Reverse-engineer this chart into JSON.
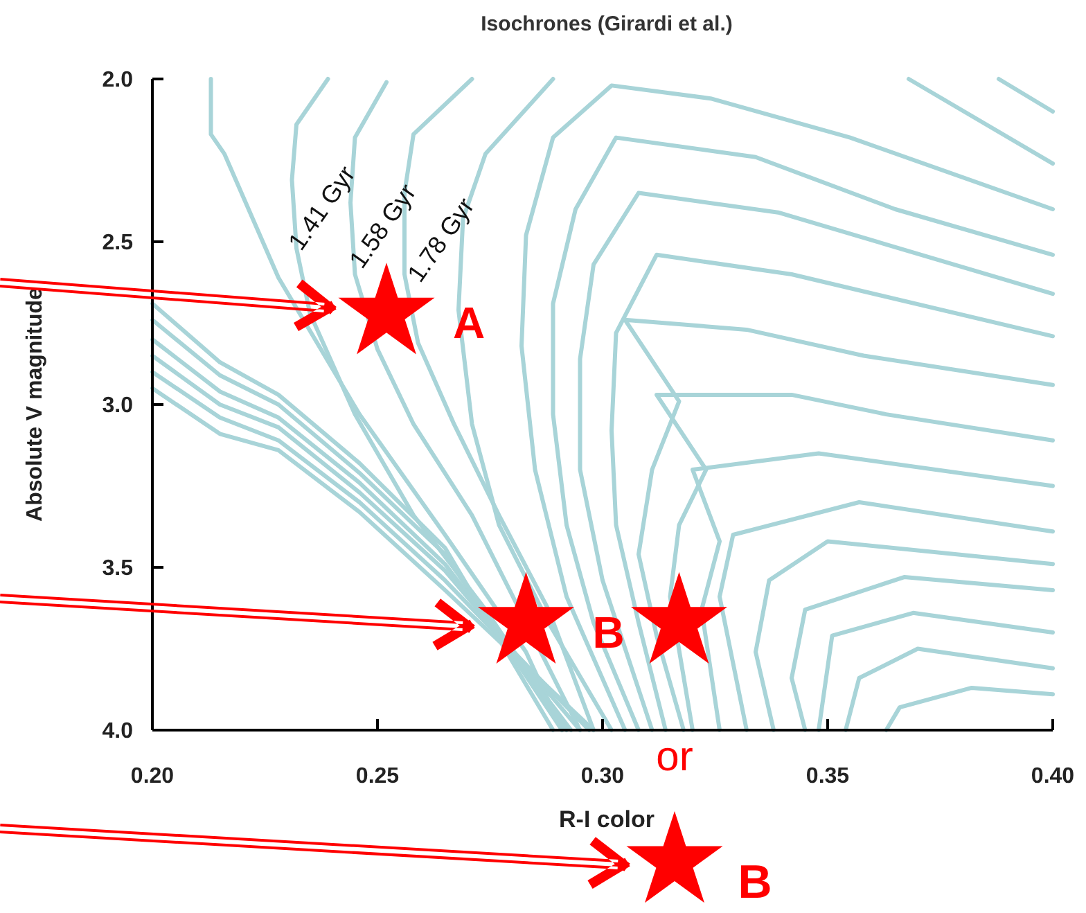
{
  "chart_data": {
    "type": "line",
    "title": "Isochrones (Girardi et al.)",
    "xlabel": "R-I color",
    "ylabel": "Absolute V magnitude",
    "xlim": [
      0.2,
      0.4
    ],
    "ylim": [
      4,
      2
    ],
    "xticks": [
      {
        "value": 0.2,
        "label": "0.20"
      },
      {
        "value": 0.25,
        "label": "0.25"
      },
      {
        "value": 0.3,
        "label": "0.30"
      },
      {
        "value": 0.35,
        "label": "0.35"
      },
      {
        "value": 0.4,
        "label": "0.40"
      }
    ],
    "yticks": [
      {
        "value": 2,
        "label": "2.0"
      },
      {
        "value": 2.5,
        "label": "2.5"
      },
      {
        "value": 3,
        "label": "3.0"
      },
      {
        "value": 3.5,
        "label": "3.5"
      },
      {
        "value": 4,
        "label": "4.0"
      }
    ],
    "grid": false,
    "line_style": "solid",
    "annotations": [
      "1.41 Gyr",
      "1.58 Gyr",
      "1.78 Gyr",
      {
        "text": "A",
        "x": 0.252,
        "y": 2.72
      },
      {
        "text": "B",
        "x": 0.283,
        "y": 3.67
      },
      "or",
      "B"
    ],
    "series": [
      {
        "color": "#a8d4d8",
        "x": [
          0.2,
          0.215,
          0.228,
          0.246,
          0.265,
          0.289
        ],
        "values": [
          2.69,
          2.87,
          2.97,
          3.18,
          3.44,
          4.0
        ]
      },
      {
        "color": "#a8d4d8",
        "x": [
          0.2,
          0.215,
          0.228,
          0.246,
          0.265,
          0.291
        ],
        "values": [
          2.74,
          2.91,
          3.0,
          3.21,
          3.46,
          4.0
        ]
      },
      {
        "color": "#a8d4d8",
        "x": [
          0.2,
          0.215,
          0.228,
          0.246,
          0.265,
          0.293
        ],
        "values": [
          2.8,
          2.96,
          3.04,
          3.24,
          3.49,
          4.0
        ]
      },
      {
        "color": "#a8d4d8",
        "x": [
          0.2,
          0.215,
          0.228,
          0.246,
          0.265,
          0.295
        ],
        "values": [
          2.85,
          3.0,
          3.07,
          3.27,
          3.51,
          4.0
        ]
      },
      {
        "color": "#a8d4d8",
        "x": [
          0.2,
          0.215,
          0.228,
          0.246,
          0.265,
          0.297
        ],
        "values": [
          2.9,
          3.04,
          3.11,
          3.3,
          3.54,
          4.0
        ]
      },
      {
        "color": "#a8d4d8",
        "x": [
          0.2,
          0.215,
          0.228,
          0.246,
          0.265,
          0.298
        ],
        "values": [
          2.95,
          3.09,
          3.14,
          3.33,
          3.57,
          4.0
        ]
      },
      {
        "color": "#a8d4d8",
        "x": [
          0.213,
          0.213,
          0.216,
          0.228,
          0.246,
          0.265,
          0.283,
          0.291
        ],
        "values": [
          2.0,
          2.17,
          2.23,
          2.61,
          3.03,
          3.4,
          3.76,
          4.0
        ]
      },
      {
        "color": "#a8d4d8",
        "x": [
          0.239,
          0.232,
          0.231,
          0.232,
          0.235,
          0.245,
          0.258,
          0.274,
          0.292
        ],
        "values": [
          2.0,
          2.14,
          2.31,
          2.52,
          2.72,
          3.03,
          3.34,
          3.63,
          4.0
        ]
      },
      {
        "color": "#a8d4d8",
        "x": [
          0.252,
          0.245,
          0.244,
          0.245,
          0.25,
          0.258,
          0.271,
          0.295
        ],
        "values": [
          2.01,
          2.18,
          2.38,
          2.6,
          2.83,
          3.06,
          3.34,
          4.0
        ]
      },
      {
        "color": "#a8d4d8",
        "x": [
          0.271,
          0.258,
          0.256,
          0.256,
          0.259,
          0.267,
          0.277,
          0.288,
          0.298
        ],
        "values": [
          2.0,
          2.17,
          2.35,
          2.6,
          2.81,
          3.06,
          3.34,
          3.63,
          4.0
        ]
      },
      {
        "color": "#a8d4d8",
        "x": [
          0.289,
          0.274,
          0.269,
          0.268,
          0.271,
          0.277,
          0.288,
          0.302
        ],
        "values": [
          2.0,
          2.23,
          2.43,
          2.71,
          3.06,
          3.37,
          3.67,
          4.0
        ]
      },
      {
        "color": "#a8d4d8",
        "x": [
          0.4,
          0.355,
          0.324,
          0.302,
          0.289,
          0.283,
          0.282,
          0.285,
          0.292,
          0.305
        ],
        "values": [
          2.4,
          2.18,
          2.06,
          2.02,
          2.18,
          2.48,
          2.82,
          3.2,
          3.59,
          4.0
        ]
      },
      {
        "color": "#a8d4d8",
        "x": [
          0.4,
          0.365,
          0.334,
          0.303,
          0.294,
          0.289,
          0.289,
          0.292,
          0.298,
          0.308
        ],
        "values": [
          2.54,
          2.4,
          2.24,
          2.18,
          2.4,
          2.69,
          3.03,
          3.37,
          3.67,
          4.0
        ]
      },
      {
        "color": "#a8d4d8",
        "x": [
          0.4,
          0.339,
          0.308,
          0.298,
          0.295,
          0.295,
          0.3,
          0.311
        ],
        "values": [
          2.66,
          2.41,
          2.35,
          2.57,
          2.86,
          3.2,
          3.54,
          4.0
        ]
      },
      {
        "color": "#a8d4d8",
        "x": [
          0.4,
          0.342,
          0.312,
          0.303,
          0.302,
          0.303,
          0.308,
          0.314
        ],
        "values": [
          2.79,
          2.6,
          2.54,
          2.78,
          3.08,
          3.37,
          3.67,
          4.0
        ]
      },
      {
        "color": "#a8d4d8",
        "x": [
          0.4,
          0.358,
          0.332,
          0.305,
          0.317,
          0.311,
          0.308,
          0.312,
          0.318
        ],
        "values": [
          2.94,
          2.85,
          2.77,
          2.74,
          2.99,
          3.2,
          3.46,
          3.71,
          4.0
        ]
      },
      {
        "color": "#a8d4d8",
        "x": [
          0.4,
          0.363,
          0.342,
          0.312,
          0.323,
          0.317,
          0.315,
          0.32
        ],
        "values": [
          3.11,
          3.03,
          2.97,
          2.97,
          3.2,
          3.37,
          3.59,
          4.0
        ]
      },
      {
        "color": "#a8d4d8",
        "x": [
          0.4,
          0.348,
          0.32,
          0.326,
          0.322,
          0.326
        ],
        "values": [
          3.25,
          3.15,
          3.2,
          3.42,
          3.63,
          4.0
        ]
      },
      {
        "color": "#a8d4d8",
        "x": [
          0.4,
          0.357,
          0.329,
          0.326,
          0.332
        ],
        "values": [
          3.39,
          3.3,
          3.4,
          3.59,
          4.0
        ]
      },
      {
        "color": "#a8d4d8",
        "x": [
          0.4,
          0.35,
          0.337,
          0.334,
          0.338
        ],
        "values": [
          3.49,
          3.42,
          3.54,
          3.76,
          4.0
        ]
      },
      {
        "color": "#a8d4d8",
        "x": [
          0.4,
          0.367,
          0.345,
          0.342,
          0.345
        ],
        "values": [
          3.57,
          3.53,
          3.63,
          3.84,
          4.0
        ]
      },
      {
        "color": "#a8d4d8",
        "x": [
          0.4,
          0.369,
          0.351,
          0.348
        ],
        "values": [
          3.7,
          3.64,
          3.71,
          4.0
        ]
      },
      {
        "color": "#a8d4d8",
        "x": [
          0.4,
          0.37,
          0.357,
          0.354
        ],
        "values": [
          3.81,
          3.75,
          3.84,
          4.0
        ]
      },
      {
        "color": "#a8d4d8",
        "x": [
          0.4,
          0.382,
          0.366,
          0.363
        ],
        "values": [
          3.89,
          3.87,
          3.93,
          4.0
        ]
      },
      {
        "color": "#a8d4d8",
        "x": [
          0.388,
          0.4
        ],
        "values": [
          2.0,
          2.1
        ]
      },
      {
        "color": "#a8d4d8",
        "x": [
          0.368,
          0.4
        ],
        "values": [
          2.0,
          2.26
        ]
      },
      {
        "type": "scatter",
        "marker": "star",
        "color": "#ff0000",
        "x": [
          0.252,
          0.283,
          0.317
        ],
        "values": [
          2.72,
          3.67,
          3.67
        ]
      }
    ]
  }
}
